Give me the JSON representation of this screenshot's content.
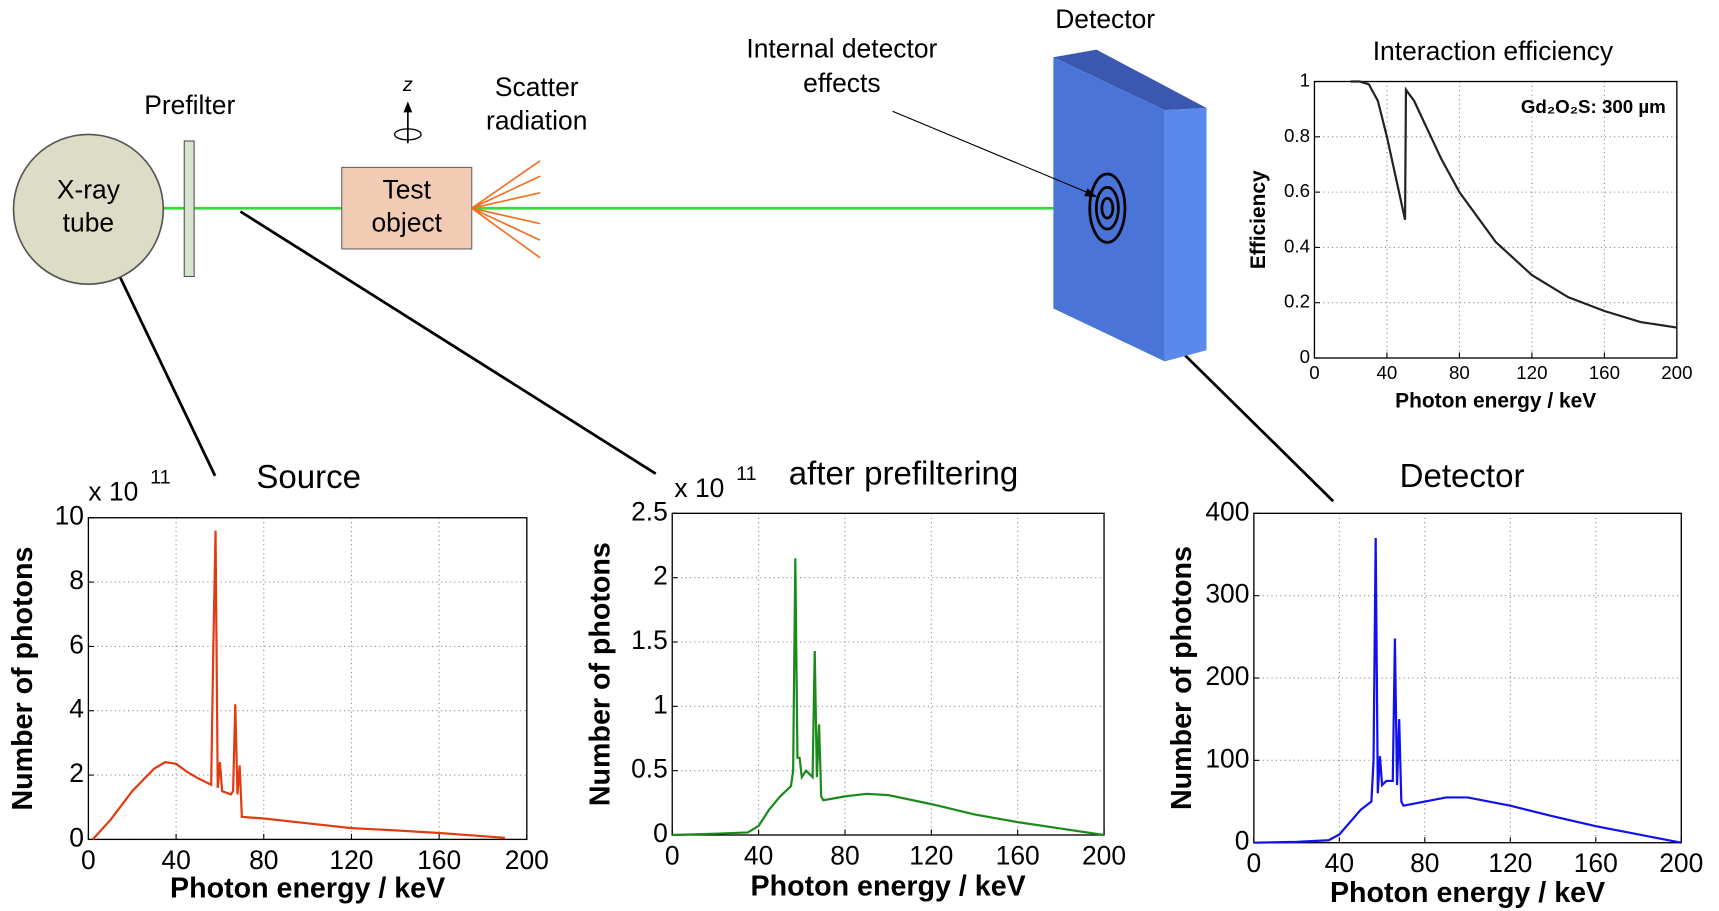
{
  "diagram": {
    "xray_tube": [
      "X-ray",
      "tube"
    ],
    "prefilter": "Prefilter",
    "z": "z",
    "test_object": [
      "Test",
      "object"
    ],
    "scatter_radiation": [
      "Scatter",
      "radiation"
    ],
    "internal_detector_effects": [
      "Internal detector",
      "effects"
    ],
    "detector": "Detector"
  },
  "chart_data": [
    {
      "type": "line",
      "title": "Source",
      "y_multiplier": {
        "base": "x 10",
        "exponent": "11"
      },
      "xlabel": "Photon energy / keV",
      "ylabel": "Number of photons",
      "color": "#e03c10",
      "grid": true,
      "xlim": [
        0,
        200
      ],
      "xticks": [
        0,
        40,
        80,
        120,
        160,
        200
      ],
      "ylim": [
        0,
        10
      ],
      "yticks": [
        0,
        2,
        4,
        6,
        8,
        10
      ],
      "x": [
        2,
        10,
        20,
        30,
        35,
        40,
        45,
        50,
        56,
        57,
        58,
        59,
        60,
        61,
        65,
        66,
        67,
        68,
        69,
        70,
        80,
        100,
        120,
        140,
        160,
        180,
        190
      ],
      "values": [
        0,
        0.6,
        1.5,
        2.2,
        2.4,
        2.35,
        2.1,
        1.9,
        1.7,
        6,
        9.6,
        1.6,
        2.4,
        1.5,
        1.4,
        1.5,
        4.2,
        1.4,
        2.3,
        0.7,
        0.65,
        0.5,
        0.35,
        0.28,
        0.2,
        0.1,
        0.05
      ]
    },
    {
      "type": "line",
      "title": "after prefiltering",
      "y_multiplier": {
        "base": "x 10",
        "exponent": "11"
      },
      "xlabel": "Photon energy / keV",
      "ylabel": "Number of photons",
      "color": "#1a8a1a",
      "grid": true,
      "xlim": [
        0,
        200
      ],
      "xticks": [
        0,
        40,
        80,
        120,
        160,
        200
      ],
      "ylim": [
        0,
        2.5
      ],
      "yticks": [
        0,
        0.5,
        1,
        1.5,
        2,
        2.5
      ],
      "x": [
        0,
        20,
        35,
        40,
        45,
        50,
        55,
        56,
        57,
        58,
        59,
        60,
        62,
        65,
        66,
        67,
        68,
        69,
        70,
        80,
        90,
        100,
        120,
        140,
        160,
        180,
        200
      ],
      "values": [
        0,
        0.01,
        0.02,
        0.07,
        0.2,
        0.3,
        0.38,
        0.5,
        2.15,
        0.6,
        0.6,
        0.45,
        0.5,
        0.45,
        1.43,
        0.45,
        0.86,
        0.3,
        0.27,
        0.3,
        0.32,
        0.31,
        0.24,
        0.16,
        0.1,
        0.05,
        0
      ]
    },
    {
      "type": "line",
      "title": "Detector",
      "xlabel": "Photon energy / keV",
      "ylabel": "Number of photons",
      "color": "#1010f0",
      "grid": true,
      "xlim": [
        0,
        200
      ],
      "xticks": [
        0,
        40,
        80,
        120,
        160,
        200
      ],
      "ylim": [
        0,
        400
      ],
      "yticks": [
        0,
        100,
        200,
        300,
        400
      ],
      "x": [
        0,
        20,
        35,
        40,
        45,
        50,
        55,
        56,
        57,
        58,
        59,
        60,
        62,
        65,
        66,
        67,
        68,
        69,
        70,
        80,
        90,
        100,
        120,
        140,
        160,
        180,
        200
      ],
      "values": [
        0,
        1,
        3,
        10,
        25,
        40,
        50,
        100,
        370,
        60,
        105,
        70,
        75,
        75,
        248,
        70,
        150,
        50,
        45,
        50,
        55,
        55,
        45,
        32,
        20,
        10,
        0
      ]
    },
    {
      "type": "line",
      "title": "Interaction efficiency",
      "annotation": "Gd₂O₂S: 300 µm",
      "xlabel": "Photon energy / keV",
      "ylabel": "Efficiency",
      "color": "#222222",
      "grid": true,
      "xlim": [
        0,
        200
      ],
      "xticks": [
        0,
        40,
        80,
        120,
        160,
        200
      ],
      "ylim": [
        0,
        1
      ],
      "yticks": [
        0,
        0.2,
        0.4,
        0.6,
        0.8,
        1
      ],
      "x": [
        20,
        25,
        30,
        35,
        40,
        45,
        50,
        50.5,
        55,
        60,
        70,
        80,
        100,
        120,
        140,
        160,
        180,
        200
      ],
      "values": [
        1,
        1,
        0.99,
        0.93,
        0.8,
        0.65,
        0.5,
        0.97,
        0.93,
        0.86,
        0.72,
        0.6,
        0.42,
        0.3,
        0.22,
        0.17,
        0.13,
        0.11
      ]
    }
  ]
}
